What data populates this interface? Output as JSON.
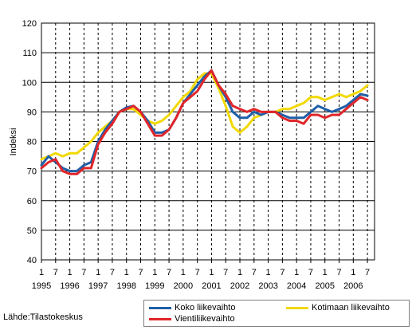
{
  "source_text": "Lähde:Tilastokeskus",
  "chart_data": {
    "type": "line",
    "ylabel": "Indeksi",
    "ylim": [
      40,
      120
    ],
    "yticks": [
      40,
      50,
      60,
      70,
      80,
      90,
      100,
      110,
      120
    ],
    "x_range": [
      1995.0,
      2006.75
    ],
    "month_ticks": [
      "1",
      "7",
      "1",
      "7",
      "1",
      "7",
      "1",
      "7",
      "1",
      "7",
      "1",
      "7",
      "1",
      "7",
      "1",
      "7",
      "1",
      "7",
      "1",
      "7",
      "1",
      "7",
      "1",
      "7"
    ],
    "year_labels": [
      "1995",
      "1996",
      "1997",
      "1998",
      "1999",
      "2000",
      "2001",
      "2002",
      "2003",
      "2004",
      "2005",
      "2006"
    ],
    "grid": "horizontal solid, vertical dashed",
    "legend_position": "bottom-right",
    "series": [
      {
        "name": "Koko liikevaihto",
        "color": "#1f5fa8",
        "x": [
          1995.0,
          1995.25,
          1995.5,
          1995.75,
          1996.0,
          1996.25,
          1996.5,
          1996.75,
          1997.0,
          1997.25,
          1997.5,
          1997.75,
          1998.0,
          1998.25,
          1998.5,
          1998.75,
          1999.0,
          1999.25,
          1999.5,
          1999.75,
          2000.0,
          2000.25,
          2000.5,
          2000.75,
          2001.0,
          2001.25,
          2001.5,
          2001.75,
          2002.0,
          2002.25,
          2002.5,
          2002.75,
          2003.0,
          2003.25,
          2003.5,
          2003.75,
          2004.0,
          2004.25,
          2004.5,
          2004.75,
          2005.0,
          2005.25,
          2005.5,
          2005.75,
          2006.0,
          2006.25,
          2006.5
        ],
        "values": [
          72,
          75,
          73,
          71,
          70,
          70,
          72,
          73,
          80,
          84,
          87,
          90,
          91.5,
          92,
          90,
          87,
          83,
          83,
          84,
          88,
          93,
          96,
          99,
          102,
          104,
          99,
          95,
          90,
          88,
          88,
          90,
          89,
          90,
          90,
          89,
          88,
          88,
          88,
          90,
          92,
          91,
          90,
          91,
          92,
          94,
          96,
          95.5
        ]
      },
      {
        "name": "Kotimaan liikevaihto",
        "color": "#f2d800",
        "x": [
          1995.0,
          1995.25,
          1995.5,
          1995.75,
          1996.0,
          1996.25,
          1996.5,
          1996.75,
          1997.0,
          1997.25,
          1997.5,
          1997.75,
          1998.0,
          1998.25,
          1998.5,
          1998.75,
          1999.0,
          1999.25,
          1999.5,
          1999.75,
          2000.0,
          2000.25,
          2000.5,
          2000.75,
          2001.0,
          2001.25,
          2001.5,
          2001.75,
          2002.0,
          2002.25,
          2002.5,
          2002.75,
          2003.0,
          2003.25,
          2003.5,
          2003.75,
          2004.0,
          2004.25,
          2004.5,
          2004.75,
          2005.0,
          2005.25,
          2005.5,
          2005.75,
          2006.0,
          2006.25,
          2006.5
        ],
        "values": [
          74,
          75,
          76,
          75,
          76,
          76,
          78,
          80,
          83,
          85,
          87,
          90,
          91,
          91,
          89,
          87,
          86,
          87,
          89,
          92,
          95,
          97,
          101,
          103,
          103,
          98,
          92,
          85,
          83,
          85,
          88,
          89,
          90,
          90,
          91,
          91,
          92,
          93,
          95,
          95,
          94,
          95,
          96,
          95,
          96,
          97,
          99
        ]
      },
      {
        "name": "Vientiliikevaihto",
        "color": "#e0262a",
        "x": [
          1995.0,
          1995.25,
          1995.5,
          1995.75,
          1996.0,
          1996.25,
          1996.5,
          1996.75,
          1997.0,
          1997.25,
          1997.5,
          1997.75,
          1998.0,
          1998.25,
          1998.5,
          1998.75,
          1999.0,
          1999.25,
          1999.5,
          1999.75,
          2000.0,
          2000.25,
          2000.5,
          2000.75,
          2001.0,
          2001.25,
          2001.5,
          2001.75,
          2002.0,
          2002.25,
          2002.5,
          2002.75,
          2003.0,
          2003.25,
          2003.5,
          2003.75,
          2004.0,
          2004.25,
          2004.5,
          2004.75,
          2005.0,
          2005.25,
          2005.5,
          2005.75,
          2006.0,
          2006.25,
          2006.5
        ],
        "values": [
          71,
          73,
          74,
          70,
          69,
          69,
          71,
          71,
          79,
          83,
          86,
          90,
          91,
          92,
          90,
          86,
          82,
          82,
          84,
          88,
          93,
          95,
          97,
          101,
          104,
          99,
          96,
          92,
          91,
          90,
          91,
          90,
          90,
          90,
          88,
          87,
          87,
          86,
          89,
          89,
          88,
          89,
          89,
          91,
          93,
          95,
          94
        ]
      }
    ]
  }
}
